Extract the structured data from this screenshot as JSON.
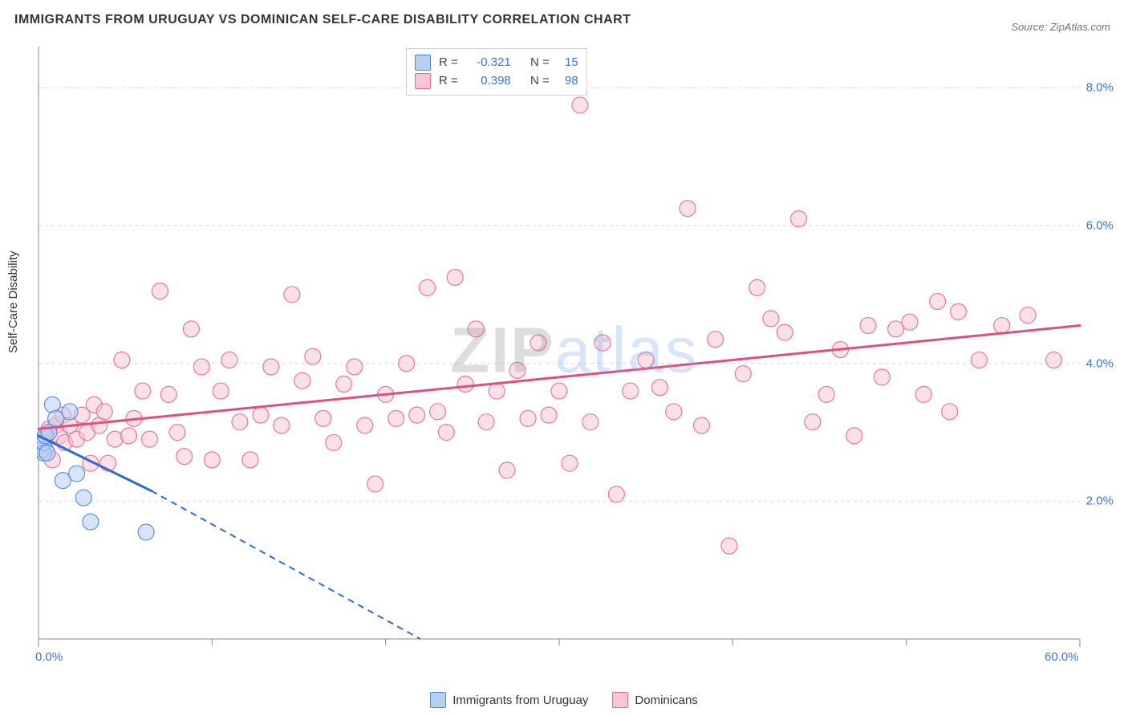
{
  "title": "IMMIGRANTS FROM URUGUAY VS DOMINICAN SELF-CARE DISABILITY CORRELATION CHART",
  "source_label": "Source: ZipAtlas.com",
  "ylabel": "Self-Care Disability",
  "watermark": {
    "part1": "ZIP",
    "part2": "atlas"
  },
  "chart": {
    "type": "scatter",
    "background_color": "#ffffff",
    "grid_color": "#d8d8d8",
    "grid_dash": "4 4",
    "axis_line_color": "#888888",
    "tick_label_color": "#3973d4",
    "xlim": [
      0,
      60
    ],
    "ylim": [
      0,
      8.6
    ],
    "xticks_major": [
      0,
      60
    ],
    "xticks_minor": [
      10,
      20,
      30,
      40,
      50
    ],
    "yticks": [
      2,
      4,
      6,
      8
    ],
    "xtick_labels": {
      "0": "0.0%",
      "60": "60.0%"
    },
    "ytick_labels": {
      "2": "2.0%",
      "4": "4.0%",
      "6": "6.0%",
      "8": "8.0%"
    },
    "marker_radius": 10,
    "marker_opacity": 0.55,
    "trend_line_width_solid": 3,
    "trend_line_width_dash": 2,
    "trend_dash": "8 6"
  },
  "series": [
    {
      "id": "uruguay",
      "label": "Immigrants from Uruguay",
      "fill": "#b7d0f2",
      "stroke": "#4f86d6",
      "line_color": "#2f6bd0",
      "R": "-0.321",
      "N": "15",
      "trend": {
        "x1": 0,
        "y1": 2.95,
        "x2_solid": 6.5,
        "y2_solid": 2.15,
        "x2_dash": 22,
        "y2_dash": 0.0
      },
      "points": [
        [
          0.0,
          2.8
        ],
        [
          0.2,
          2.75
        ],
        [
          0.3,
          2.7
        ],
        [
          0.3,
          2.85
        ],
        [
          0.4,
          2.95
        ],
        [
          0.5,
          2.7
        ],
        [
          0.6,
          3.0
        ],
        [
          0.8,
          3.4
        ],
        [
          1.0,
          3.2
        ],
        [
          1.4,
          2.3
        ],
        [
          1.8,
          3.3
        ],
        [
          2.2,
          2.4
        ],
        [
          2.6,
          2.05
        ],
        [
          3.0,
          1.7
        ],
        [
          6.2,
          1.55
        ]
      ]
    },
    {
      "id": "dominicans",
      "label": "Dominicans",
      "fill": "#f8c7d4",
      "stroke": "#e46a8c",
      "line_color": "#e14e81",
      "R": "0.398",
      "N": "98",
      "trend": {
        "x1": 0,
        "y1": 3.05,
        "x2_solid": 60,
        "y2_solid": 4.55,
        "x2_dash": 60,
        "y2_dash": 4.55
      },
      "points": [
        [
          0.3,
          2.9
        ],
        [
          0.4,
          2.75
        ],
        [
          0.6,
          3.05
        ],
        [
          0.8,
          2.6
        ],
        [
          1.0,
          3.1
        ],
        [
          1.2,
          2.95
        ],
        [
          1.4,
          3.25
        ],
        [
          1.5,
          2.85
        ],
        [
          1.8,
          3.1
        ],
        [
          2.2,
          2.9
        ],
        [
          2.5,
          3.25
        ],
        [
          2.8,
          3.0
        ],
        [
          3.0,
          2.55
        ],
        [
          3.2,
          3.4
        ],
        [
          3.5,
          3.1
        ],
        [
          3.8,
          3.3
        ],
        [
          4.0,
          2.55
        ],
        [
          4.4,
          2.9
        ],
        [
          4.8,
          4.05
        ],
        [
          5.2,
          2.95
        ],
        [
          5.5,
          3.2
        ],
        [
          6.0,
          3.6
        ],
        [
          6.4,
          2.9
        ],
        [
          7.0,
          5.05
        ],
        [
          7.5,
          3.55
        ],
        [
          8.0,
          3.0
        ],
        [
          8.4,
          2.65
        ],
        [
          8.8,
          4.5
        ],
        [
          9.4,
          3.95
        ],
        [
          10.0,
          2.6
        ],
        [
          10.5,
          3.6
        ],
        [
          11.0,
          4.05
        ],
        [
          11.6,
          3.15
        ],
        [
          12.2,
          2.6
        ],
        [
          12.8,
          3.25
        ],
        [
          13.4,
          3.95
        ],
        [
          14.0,
          3.1
        ],
        [
          14.6,
          5.0
        ],
        [
          15.2,
          3.75
        ],
        [
          15.8,
          4.1
        ],
        [
          16.4,
          3.2
        ],
        [
          17.0,
          2.85
        ],
        [
          17.6,
          3.7
        ],
        [
          18.2,
          3.95
        ],
        [
          18.8,
          3.1
        ],
        [
          19.4,
          2.25
        ],
        [
          20.0,
          3.55
        ],
        [
          20.6,
          3.2
        ],
        [
          21.2,
          4.0
        ],
        [
          21.8,
          3.25
        ],
        [
          22.4,
          5.1
        ],
        [
          23.0,
          3.3
        ],
        [
          23.5,
          3.0
        ],
        [
          24.0,
          5.25
        ],
        [
          24.6,
          3.7
        ],
        [
          25.2,
          4.5
        ],
        [
          25.8,
          3.15
        ],
        [
          26.4,
          3.6
        ],
        [
          27.0,
          2.45
        ],
        [
          27.6,
          3.9
        ],
        [
          28.2,
          3.2
        ],
        [
          28.8,
          4.3
        ],
        [
          29.4,
          3.25
        ],
        [
          30.0,
          3.6
        ],
        [
          30.6,
          2.55
        ],
        [
          31.2,
          7.75
        ],
        [
          31.8,
          3.15
        ],
        [
          32.5,
          4.3
        ],
        [
          33.3,
          2.1
        ],
        [
          34.1,
          3.6
        ],
        [
          35.0,
          4.05
        ],
        [
          35.8,
          3.65
        ],
        [
          36.6,
          3.3
        ],
        [
          37.4,
          6.25
        ],
        [
          38.2,
          3.1
        ],
        [
          39.0,
          4.35
        ],
        [
          39.8,
          1.35
        ],
        [
          40.6,
          3.85
        ],
        [
          41.4,
          5.1
        ],
        [
          42.2,
          4.65
        ],
        [
          43.0,
          4.45
        ],
        [
          43.8,
          6.1
        ],
        [
          44.6,
          3.15
        ],
        [
          45.4,
          3.55
        ],
        [
          46.2,
          4.2
        ],
        [
          47.0,
          2.95
        ],
        [
          47.8,
          4.55
        ],
        [
          48.6,
          3.8
        ],
        [
          49.4,
          4.5
        ],
        [
          50.2,
          4.6
        ],
        [
          51.0,
          3.55
        ],
        [
          51.8,
          4.9
        ],
        [
          53.0,
          4.75
        ],
        [
          54.2,
          4.05
        ],
        [
          55.5,
          4.55
        ],
        [
          57.0,
          4.7
        ],
        [
          58.5,
          4.05
        ],
        [
          52.5,
          3.3
        ]
      ]
    }
  ],
  "corr_box": {
    "R_label": "R =",
    "N_label": "N ="
  },
  "bottom_legend_labels": [
    "Immigrants from Uruguay",
    "Dominicans"
  ]
}
